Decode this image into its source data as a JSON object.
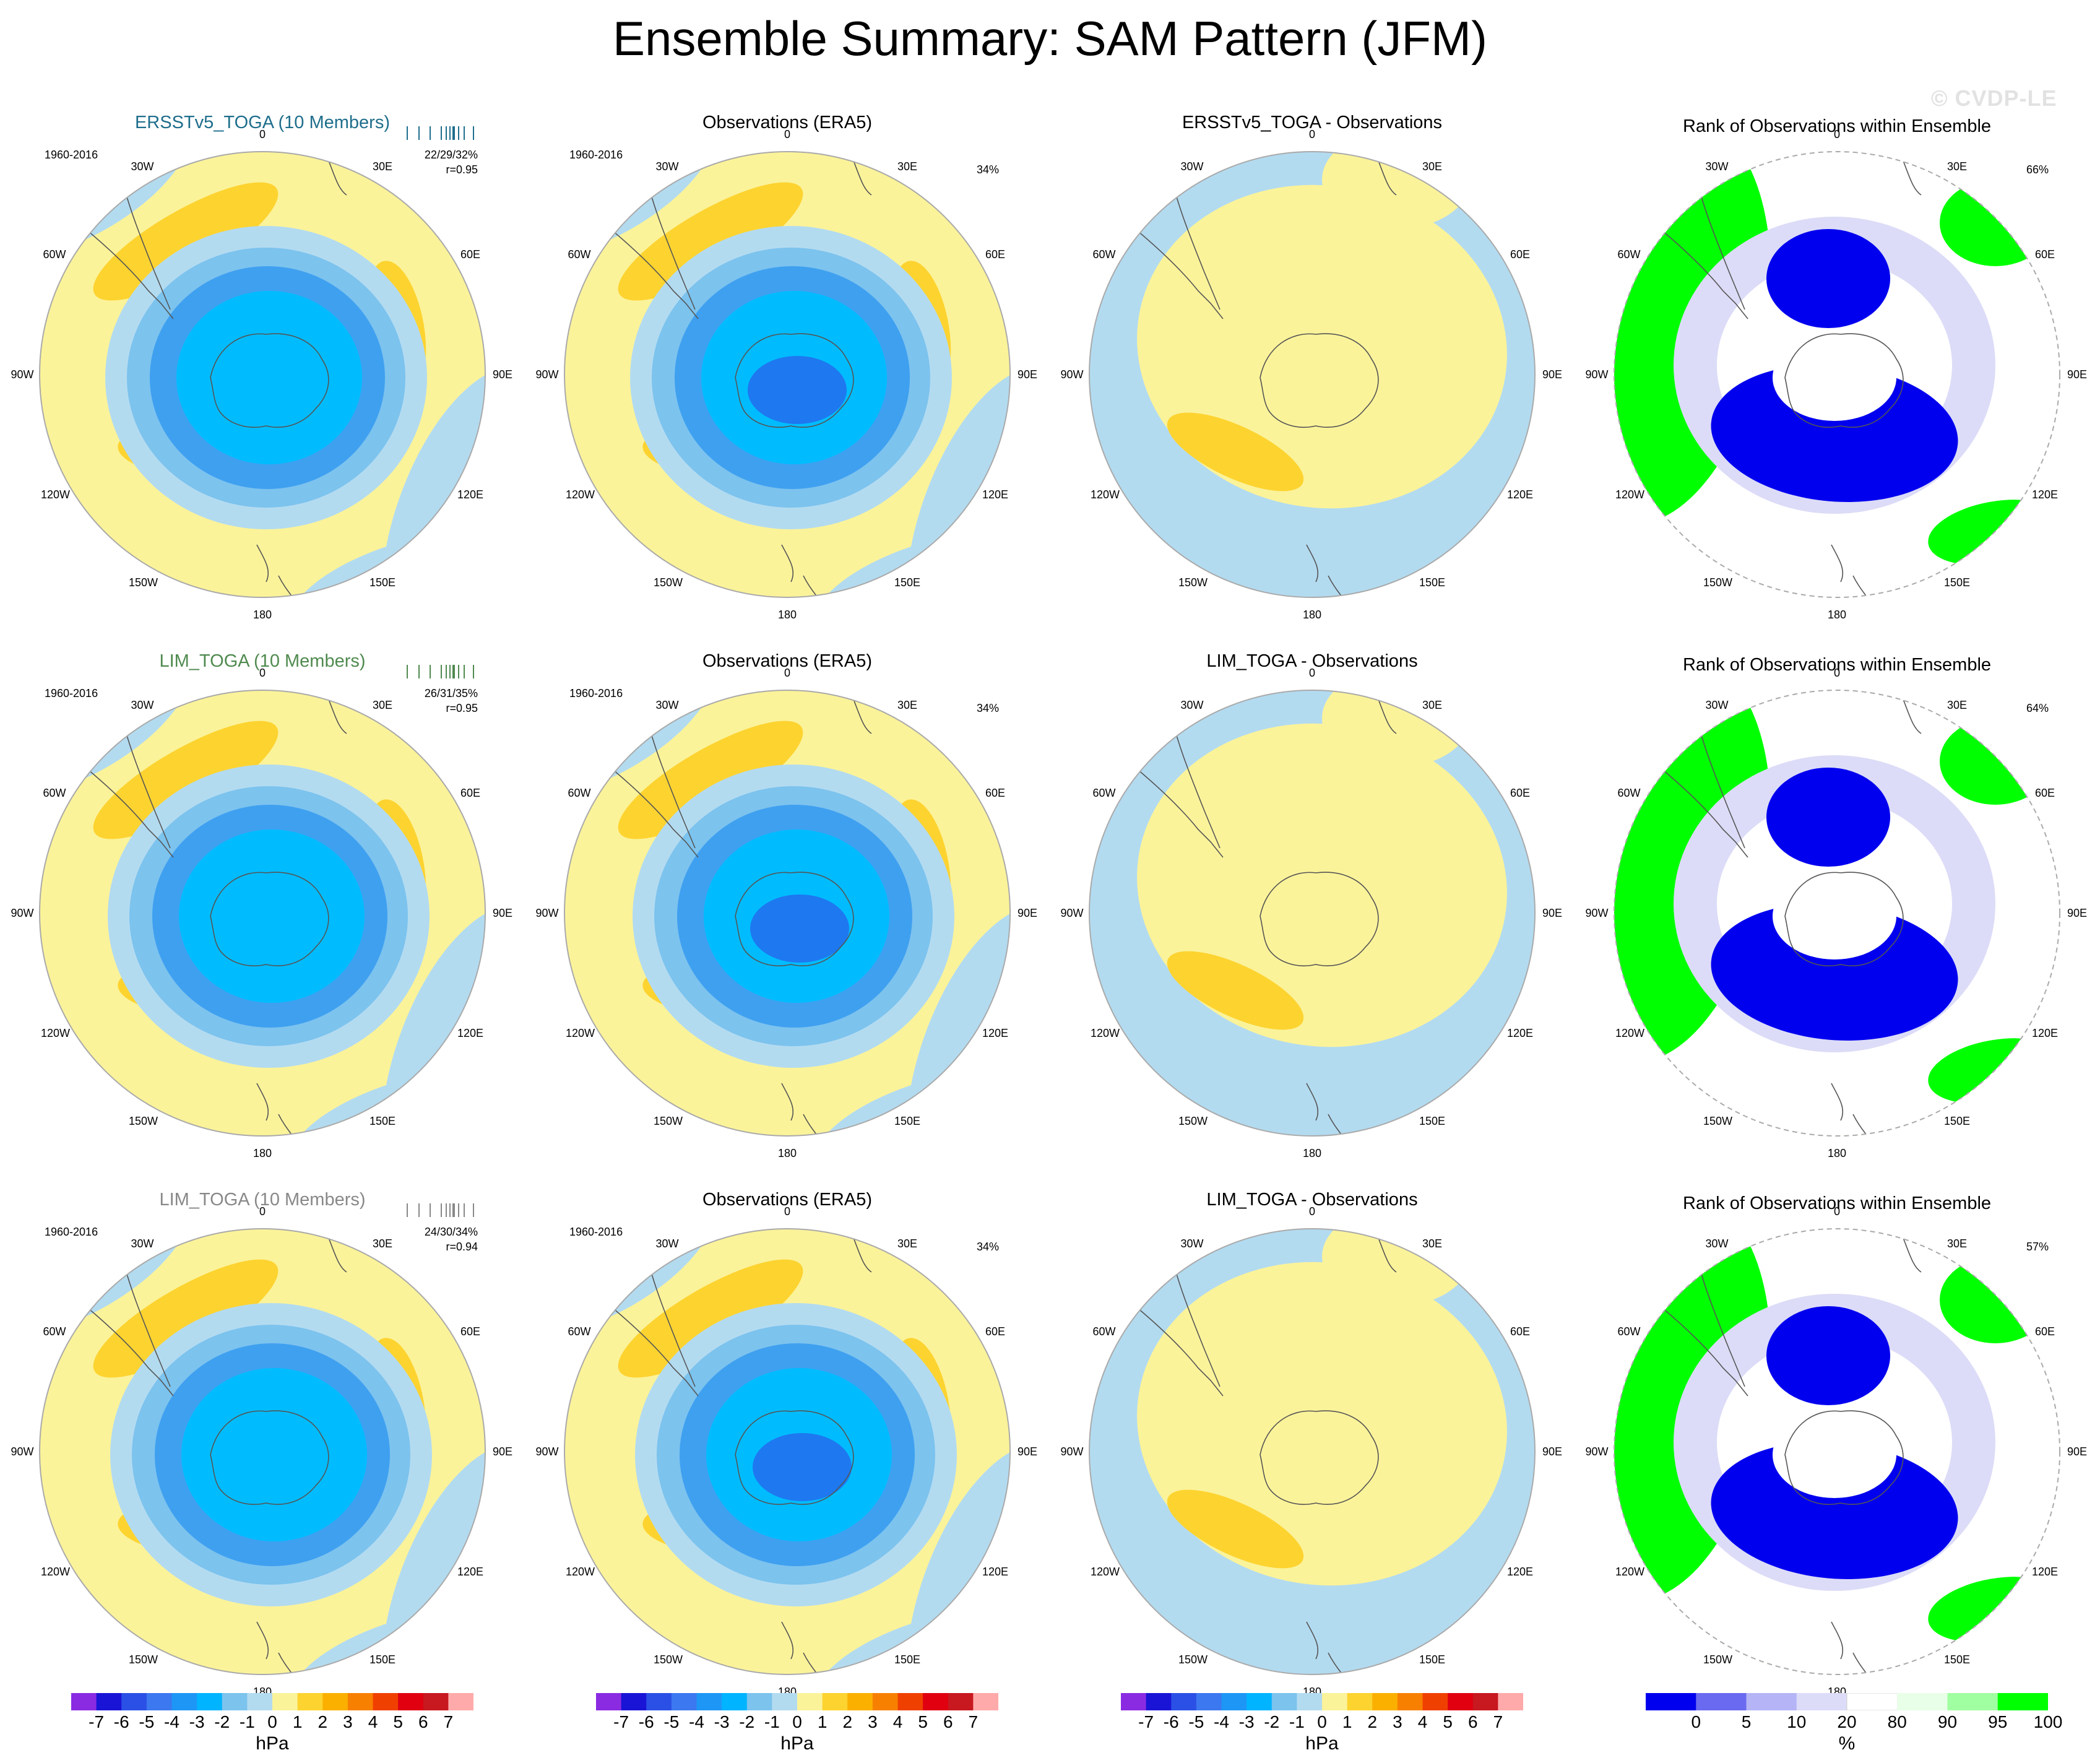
{
  "title": "Ensemble Summary: SAM Pattern (JFM)",
  "watermark": "© CVDP-LE",
  "colors": {
    "title_ersst": "#1f6e8c",
    "title_lim1": "#4f8a4f",
    "title_lim2": "#888888",
    "pos1": "#fbf39a",
    "pos2": "#fdd330",
    "neg1": "#b3dbf0",
    "neg2": "#7cc3ee",
    "neg3": "#3fa0f0",
    "neg4": "#00bcff",
    "neg5": "#1e78f0",
    "rank_dark_blue": "#0000ee",
    "rank_light_blue": "#dcdcf8",
    "rank_green": "#00ff00",
    "rank_light_green": "#e8ffe8",
    "coast": "#555555"
  },
  "lon_labels": [
    "0",
    "30E",
    "60E",
    "90E",
    "120E",
    "150E",
    "180",
    "150W",
    "120W",
    "90W",
    "60W",
    "30W"
  ],
  "rows": [
    {
      "model": {
        "title": "ERSSTv5_TOGA (10 Members)",
        "period": "1960-2016",
        "stats_line1": "22/29/32%",
        "stats_line2": "r=0.95"
      },
      "obs": {
        "title": "Observations (ERA5)",
        "period": "1960-2016",
        "pct": "34%"
      },
      "diff": {
        "title": "ERSSTv5_TOGA - Observations"
      },
      "rank": {
        "title": "Rank of Observations within Ensemble",
        "pct": "66%"
      }
    },
    {
      "model": {
        "title": "LIM_TOGA (10 Members)",
        "period": "1960-2016",
        "stats_line1": "26/31/35%",
        "stats_line2": "r=0.95"
      },
      "obs": {
        "title": "Observations (ERA5)",
        "period": "1960-2016",
        "pct": "34%"
      },
      "diff": {
        "title": "LIM_TOGA - Observations"
      },
      "rank": {
        "title": "Rank of Observations within Ensemble",
        "pct": "64%"
      }
    },
    {
      "model": {
        "title": "LIM_TOGA (10 Members)",
        "period": "1960-2016",
        "stats_line1": "24/30/34%",
        "stats_line2": "r=0.94"
      },
      "obs": {
        "title": "Observations (ERA5)",
        "period": "1960-2016",
        "pct": "34%"
      },
      "diff": {
        "title": "LIM_TOGA - Observations"
      },
      "rank": {
        "title": "Rank of Observations within Ensemble",
        "pct": "57%"
      }
    }
  ],
  "chart_data": [
    {
      "type": "heatmap",
      "description_kind": "polar stereographic SLP regression maps, Southern Hemisphere",
      "units": "hPa",
      "colorbar": {
        "ticks": [
          "-7",
          "-6",
          "-5",
          "-4",
          "-3",
          "-2",
          "-1",
          "0",
          "1",
          "2",
          "3",
          "4",
          "5",
          "6",
          "7"
        ],
        "colors": [
          "#8a2be2",
          "#1a14d6",
          "#2a50e6",
          "#3c78f0",
          "#1e96f5",
          "#00b4ff",
          "#7cc3ee",
          "#b3dbf0",
          "#fbf39a",
          "#fdd330",
          "#fbb000",
          "#f88000",
          "#f04000",
          "#e00010",
          "#c81820",
          "#ffaaaa"
        ],
        "unit_label": "hPa"
      }
    },
    {
      "type": "heatmap",
      "description_kind": "rank of observations within ensemble",
      "units": "%",
      "colorbar": {
        "ticks": [
          "0",
          "5",
          "10",
          "20",
          "80",
          "90",
          "95",
          "100"
        ],
        "colors": [
          "#0000ee",
          "#6a6af0",
          "#b4b4f6",
          "#dcdcf8",
          "#ffffff",
          "#e8ffe8",
          "#a0ffa0",
          "#00ff00"
        ],
        "unit_label": "%"
      }
    }
  ]
}
